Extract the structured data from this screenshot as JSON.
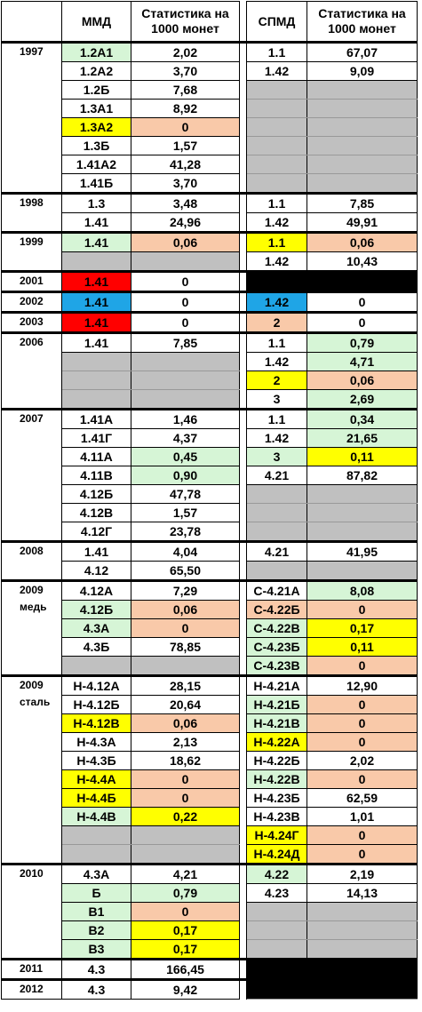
{
  "header": {
    "year": null,
    "mmd": "ММД",
    "mmd_stat": "Статистика на 1000 монет",
    "spmd": "СПМД",
    "spmd_stat": "Статистика на 1000 монет"
  },
  "groups": [
    {
      "year": "1997",
      "rows": [
        {
          "cells": [
            "1.2А1",
            "2,02",
            "1.1",
            "67,07"
          ],
          "fills": [
            "#d6f5d6",
            null,
            null,
            null
          ]
        },
        {
          "cells": [
            "1.2А2",
            "3,70",
            "1.42",
            "9,09"
          ]
        },
        {
          "cells": [
            "1.2Б",
            "7,68",
            null,
            null
          ],
          "fills": [
            null,
            null,
            "#c0c0c0",
            "#c0c0c0"
          ]
        },
        {
          "cells": [
            "1.3А1",
            "8,92",
            null,
            null
          ],
          "fills": [
            null,
            null,
            "#c0c0c0",
            "#c0c0c0"
          ]
        },
        {
          "cells": [
            "1.3А2",
            "0",
            null,
            null
          ],
          "fills": [
            "#ffff00",
            "#f9c9a9",
            "#c0c0c0",
            "#c0c0c0"
          ]
        },
        {
          "cells": [
            "1.3Б",
            "1,57",
            null,
            null
          ],
          "fills": [
            null,
            null,
            "#c0c0c0",
            "#c0c0c0"
          ]
        },
        {
          "cells": [
            "1.41А2",
            "41,28",
            null,
            null
          ],
          "fills": [
            null,
            null,
            "#c0c0c0",
            "#c0c0c0"
          ]
        },
        {
          "cells": [
            "1.41Б",
            "3,70",
            null,
            null
          ],
          "fills": [
            null,
            null,
            "#c0c0c0",
            "#c0c0c0"
          ]
        }
      ]
    },
    {
      "year": "1998",
      "rows": [
        {
          "cells": [
            "1.3",
            "3,48",
            "1.1",
            "7,85"
          ]
        },
        {
          "cells": [
            "1.41",
            "24,96",
            "1.42",
            "49,91"
          ]
        }
      ]
    },
    {
      "year": "1999",
      "rows": [
        {
          "cells": [
            "1.41",
            "0,06",
            "1.1",
            "0,06"
          ],
          "fills": [
            "#d6f5d6",
            "#f9c9a9",
            "#ffff00",
            "#f9c9a9"
          ]
        },
        {
          "cells": [
            null,
            null,
            "1.42",
            "10,43"
          ],
          "fills": [
            "#c0c0c0",
            "#c0c0c0",
            null,
            null
          ]
        }
      ]
    },
    {
      "year": "2001",
      "rows": [
        {
          "cells": [
            "1.41",
            "0",
            null,
            null
          ],
          "fills": [
            "#ff0000",
            null,
            "#000000",
            "#000000"
          ]
        }
      ]
    },
    {
      "year": "2002",
      "rows": [
        {
          "cells": [
            "1.41",
            "0",
            "1.42",
            "0"
          ],
          "fills": [
            "#1fa5e6",
            null,
            "#1fa5e6",
            null
          ]
        }
      ]
    },
    {
      "year": "2003",
      "rows": [
        {
          "cells": [
            "1.41",
            "0",
            "2",
            "0"
          ],
          "fills": [
            "#ff0000",
            null,
            "#f9c9a9",
            null
          ]
        }
      ]
    },
    {
      "year": "2006",
      "rows": [
        {
          "cells": [
            "1.41",
            "7,85",
            "1.1",
            "0,79"
          ],
          "fills": [
            null,
            null,
            null,
            "#d6f5d6"
          ]
        },
        {
          "cells": [
            null,
            null,
            "1.42",
            "4,71"
          ],
          "fills": [
            "#c0c0c0",
            "#c0c0c0",
            null,
            "#d6f5d6"
          ]
        },
        {
          "cells": [
            null,
            null,
            "2",
            "0,06"
          ],
          "fills": [
            "#c0c0c0",
            "#c0c0c0",
            "#ffff00",
            "#f9c9a9"
          ]
        },
        {
          "cells": [
            null,
            null,
            "3",
            "2,69"
          ],
          "fills": [
            "#c0c0c0",
            "#c0c0c0",
            null,
            "#d6f5d6"
          ]
        }
      ]
    },
    {
      "year": "2007",
      "rows": [
        {
          "cells": [
            "1.41А",
            "1,46",
            "1.1",
            "0,34"
          ],
          "fills": [
            null,
            null,
            null,
            "#d6f5d6"
          ]
        },
        {
          "cells": [
            "1.41Г",
            "4,37",
            "1.42",
            "21,65"
          ],
          "fills": [
            null,
            null,
            null,
            "#d6f5d6"
          ]
        },
        {
          "cells": [
            "4.11А",
            "0,45",
            "3",
            "0,11"
          ],
          "fills": [
            null,
            "#d6f5d6",
            "#d6f5d6",
            "#ffff00"
          ]
        },
        {
          "cells": [
            "4.11В",
            "0,90",
            "4.21",
            "87,82"
          ],
          "fills": [
            null,
            "#d6f5d6",
            null,
            null
          ]
        },
        {
          "cells": [
            "4.12Б",
            "47,78",
            null,
            null
          ],
          "fills": [
            null,
            null,
            "#c0c0c0",
            "#c0c0c0"
          ]
        },
        {
          "cells": [
            "4.12В",
            "1,57",
            null,
            null
          ],
          "fills": [
            null,
            null,
            "#c0c0c0",
            "#c0c0c0"
          ]
        },
        {
          "cells": [
            "4.12Г",
            "23,78",
            null,
            null
          ],
          "fills": [
            null,
            null,
            "#c0c0c0",
            "#c0c0c0"
          ]
        }
      ]
    },
    {
      "year": "2008",
      "rows": [
        {
          "cells": [
            "1.41",
            "4,04",
            "4.21",
            "41,95"
          ]
        },
        {
          "cells": [
            "4.12",
            "65,50",
            null,
            null
          ],
          "fills": [
            null,
            null,
            "#c0c0c0",
            "#c0c0c0"
          ]
        }
      ]
    },
    {
      "year": "2009",
      "note": "медь",
      "rows": [
        {
          "cells": [
            "4.12А",
            "7,29",
            "С-4.21А",
            "8,08"
          ],
          "fills": [
            null,
            null,
            null,
            "#d6f5d6"
          ]
        },
        {
          "cells": [
            "4.12Б",
            "0,06",
            "С-4.22Б",
            "0"
          ],
          "fills": [
            "#d6f5d6",
            "#f9c9a9",
            "#f9c9a9",
            "#f9c9a9"
          ]
        },
        {
          "cells": [
            "4.3А",
            "0",
            "С-4.22В",
            "0,17"
          ],
          "fills": [
            "#d6f5d6",
            "#f9c9a9",
            "#d6f5d6",
            "#ffff00"
          ]
        },
        {
          "cells": [
            "4.3Б",
            "78,85",
            "С-4.23Б",
            "0,11"
          ],
          "fills": [
            null,
            null,
            "#d6f5d6",
            "#ffff00"
          ]
        },
        {
          "cells": [
            null,
            null,
            "С-4.23В",
            "0"
          ],
          "fills": [
            "#c0c0c0",
            "#c0c0c0",
            "#d6f5d6",
            "#f9c9a9"
          ]
        }
      ]
    },
    {
      "year": "2009",
      "note": "сталь",
      "rows": [
        {
          "cells": [
            "Н-4.12А",
            "28,15",
            "Н-4.21А",
            "12,90"
          ]
        },
        {
          "cells": [
            "Н-4.12Б",
            "20,64",
            "Н-4.21Б",
            "0"
          ],
          "fills": [
            null,
            null,
            "#d6f5d6",
            "#f9c9a9"
          ]
        },
        {
          "cells": [
            "Н-4.12В",
            "0,06",
            "Н-4.21В",
            "0"
          ],
          "fills": [
            "#ffff00",
            "#f9c9a9",
            "#d6f5d6",
            "#f9c9a9"
          ]
        },
        {
          "cells": [
            "Н-4.3А",
            "2,13",
            "Н-4.22А",
            "0"
          ],
          "fills": [
            null,
            null,
            "#ffff00",
            "#f9c9a9"
          ]
        },
        {
          "cells": [
            "Н-4.3Б",
            "18,62",
            "Н-4.22Б",
            "2,02"
          ]
        },
        {
          "cells": [
            "Н-4.4А",
            "0",
            "Н-4.22В",
            "0"
          ],
          "fills": [
            "#ffff00",
            "#f9c9a9",
            "#d6f5d6",
            "#f9c9a9"
          ]
        },
        {
          "cells": [
            "Н-4.4Б",
            "0",
            "Н-4.23Б",
            "62,59"
          ],
          "fills": [
            "#ffff00",
            "#f9c9a9",
            null,
            null
          ]
        },
        {
          "cells": [
            "Н-4.4В",
            "0,22",
            "Н-4.23В",
            "1,01"
          ],
          "fills": [
            "#d6f5d6",
            "#ffff00",
            null,
            null
          ]
        },
        {
          "cells": [
            null,
            null,
            "Н-4.24Г",
            "0"
          ],
          "fills": [
            "#c0c0c0",
            "#c0c0c0",
            "#ffff00",
            "#f9c9a9"
          ]
        },
        {
          "cells": [
            null,
            null,
            "Н-4.24Д",
            "0"
          ],
          "fills": [
            "#c0c0c0",
            "#c0c0c0",
            "#ffff00",
            "#f9c9a9"
          ]
        }
      ]
    },
    {
      "year": "2010",
      "rows": [
        {
          "cells": [
            "4.3А",
            "4,21",
            "4.22",
            "2,19"
          ],
          "fills": [
            null,
            null,
            "#d6f5d6",
            null
          ]
        },
        {
          "cells": [
            "Б",
            "0,79",
            "4.23",
            "14,13"
          ],
          "fills": [
            "#d6f5d6",
            "#d6f5d6",
            null,
            null
          ]
        },
        {
          "cells": [
            "В1",
            "0",
            null,
            null
          ],
          "fills": [
            "#d6f5d6",
            "#f9c9a9",
            "#c0c0c0",
            "#c0c0c0"
          ]
        },
        {
          "cells": [
            "В2",
            "0,17",
            null,
            null
          ],
          "fills": [
            "#d6f5d6",
            "#ffff00",
            "#c0c0c0",
            "#c0c0c0"
          ]
        },
        {
          "cells": [
            "В3",
            "0,17",
            null,
            null
          ],
          "fills": [
            "#d6f5d6",
            "#ffff00",
            "#c0c0c0",
            "#c0c0c0"
          ]
        }
      ]
    },
    {
      "year": "2011",
      "rows": [
        {
          "cells": [
            "4.3",
            "166,45",
            null,
            null
          ],
          "fills": [
            null,
            null,
            "#000000",
            "#000000"
          ]
        }
      ]
    },
    {
      "year": "2012",
      "rows": [
        {
          "cells": [
            "4.3",
            "9,42",
            null,
            null
          ],
          "fills": [
            null,
            null,
            "#000000",
            "#000000"
          ]
        }
      ]
    }
  ]
}
